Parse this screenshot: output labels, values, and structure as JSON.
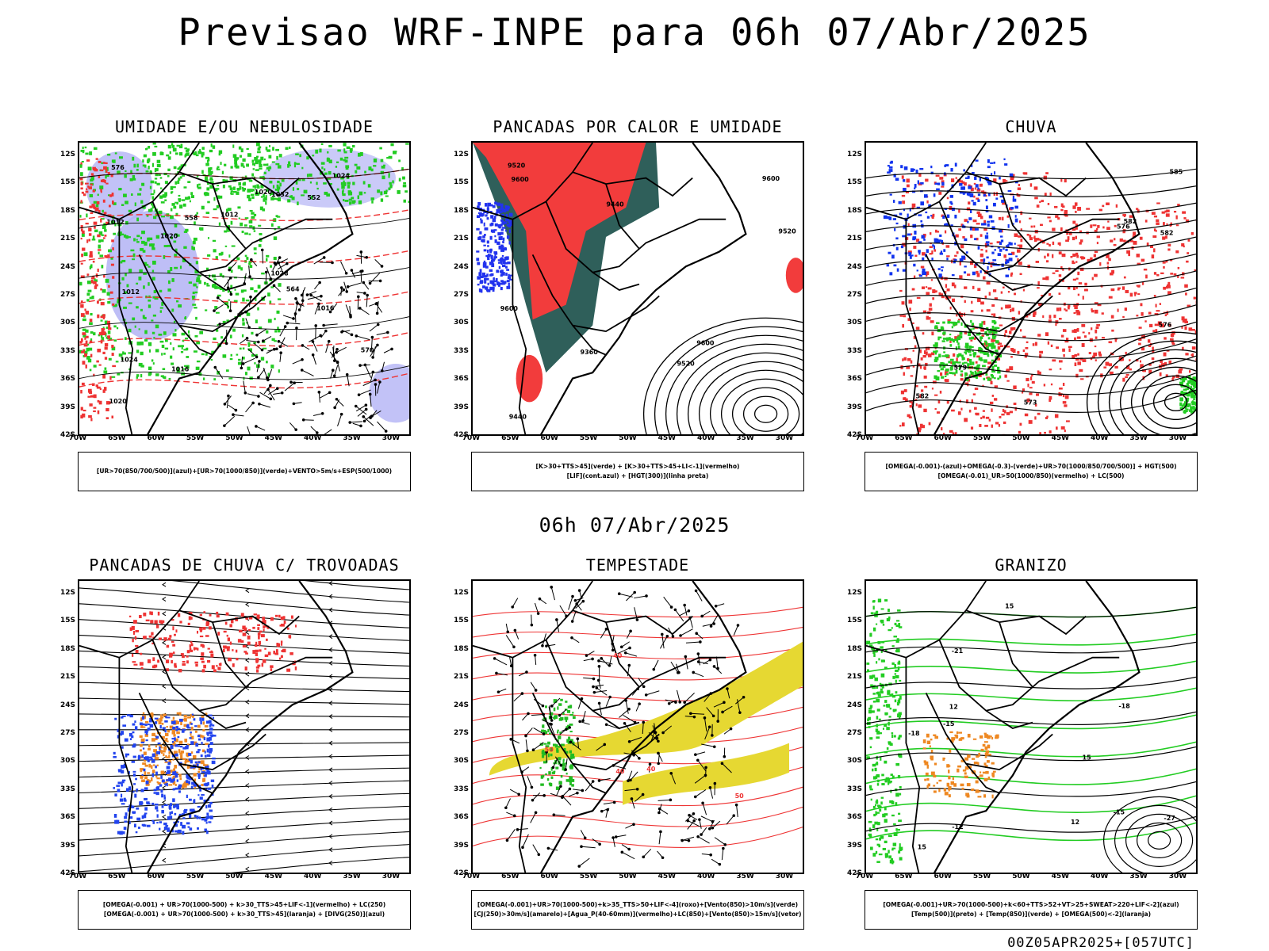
{
  "header": {
    "title": "Previsao WRF-INPE  para 06h 07/Abr/2025"
  },
  "middle_title": "06h 07/Abr/2025",
  "footer": "00Z05APR2025+[057UTC]",
  "axes": {
    "lat_labels": [
      "12S",
      "15S",
      "18S",
      "21S",
      "24S",
      "27S",
      "30S",
      "33S",
      "36S",
      "39S",
      "42S"
    ],
    "lon_labels": [
      "70W",
      "65W",
      "60W",
      "55W",
      "50W",
      "45W",
      "40W",
      "35W",
      "30W"
    ]
  },
  "panels": [
    {
      "title": "UMIDADE E/OU NEBULOSIDADE",
      "legend": [
        "[UR>70(850/700/500)](azul)+[UR>70(1000/850)](verde)+VENTO>5m/s+ESP(500/1000)"
      ],
      "contour_labels": [
        "1012",
        "1016",
        "1012",
        "1012",
        "1020",
        "1024",
        "1024",
        "1028",
        "1032",
        "1020",
        "1016",
        "1020",
        "570",
        "576",
        "564",
        "558",
        "552"
      ],
      "colors": {
        "blue": "#b3b3f5",
        "green": "#22cc22",
        "red": "#ee3333"
      }
    },
    {
      "title": "PANCADAS POR CALOR E UMIDADE",
      "legend": [
        "[K>30+TTS>45](verde) + [K>30+TTS>45+LI<-1](vermelho)",
        "[LIF](cont.azul) + [HGT(300)](linha preta)"
      ],
      "contour_labels": [
        "9600",
        "9520",
        "9600",
        "9600",
        "9520",
        "9520",
        "9440",
        "9360",
        "9440",
        "9600"
      ],
      "colors": {
        "green": "#2f5f5a",
        "red": "#f23c3c",
        "blue": "#2233ee"
      }
    },
    {
      "title": "CHUVA",
      "legend": [
        "[OMEGA(-0.001)-(azul)+OMEGA(-0.3)-(verde)+UR>70(1000/850/700/500)] + HGT(500)",
        "[OMEGA(-0.01)_UR>50(1000/850)(vermelho) + LC(500)"
      ],
      "contour_labels": [
        "582",
        "582",
        "576",
        "573",
        "576",
        "579",
        "582",
        "585"
      ],
      "colors": {
        "blue": "#1133ee",
        "green": "#22cc22",
        "red": "#ee3333"
      }
    },
    {
      "title": "PANCADAS DE CHUVA C/ TROVOADAS",
      "legend": [
        "[OMEGA(-0.001) + UR>70(1000-500) + k>30_TTS>45+LIF<-1](vermelho) + LC(250)",
        "[OMEGA(-0.001) + UR>70(1000-500) + k>30_TTS>45](laranja) + [DIVG(250)](azul)"
      ],
      "contour_labels": [],
      "colors": {
        "blue": "#2244ee",
        "orange": "#ee8822",
        "red": "#ee3333"
      }
    },
    {
      "title": "TEMPESTADE",
      "legend": [
        "[OMEGA(-0.001)+UR>70(1000-500)+k>35_TTS>50+LIF<-4](roxo)+[Vento(850)>10m/s](verde)",
        "[CJ(250)>30m/s](amarelo)+[Agua_P(40-60mm)](vermelho)+LC(850)+[Vento(850)>15m/s](vetor)"
      ],
      "contour_labels": [
        "50",
        "40",
        "50",
        "40",
        "40"
      ],
      "colors": {
        "yellow": "#e6d832",
        "green": "#22bb22",
        "red": "#ee3333"
      }
    },
    {
      "title": "GRANIZO",
      "legend": [
        "[OMEGA(-0.001)+UR>70(1000-500)+k<60+TTS>52+VT>25+SWEAT>220+LIF<-2](azul)",
        "[Temp(500)](preto) + [Temp(850)](verde) + [OMEGA(500)<-2](laranja)"
      ],
      "contour_labels": [
        "12",
        "-12",
        "-15",
        "-18",
        "-21",
        "-27",
        "15",
        "15",
        "-18",
        "15",
        "-15",
        "12"
      ],
      "colors": {
        "green": "#22cc22",
        "orange": "#ee8822",
        "black": "#000000"
      }
    }
  ]
}
